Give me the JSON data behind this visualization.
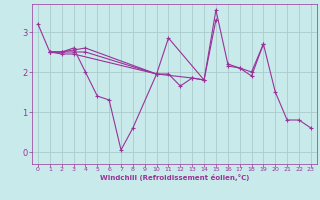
{
  "background_color": "#c8eaea",
  "grid_color": "#aacccc",
  "line_color": "#993399",
  "marker_color": "#993399",
  "xlabel": "Windchill (Refroidissement éolien,°C)",
  "xlabel_color": "#993399",
  "tick_color": "#993399",
  "xlim": [
    -0.5,
    23.5
  ],
  "ylim": [
    -0.3,
    3.7
  ],
  "yticks": [
    0,
    1,
    2,
    3
  ],
  "xticks": [
    0,
    1,
    2,
    3,
    4,
    5,
    6,
    7,
    8,
    9,
    10,
    11,
    12,
    13,
    14,
    15,
    16,
    17,
    18,
    19,
    20,
    21,
    22,
    23
  ],
  "series": [
    {
      "x": [
        0,
        1,
        2,
        3,
        4,
        5,
        6,
        7,
        8,
        10
      ],
      "y": [
        3.2,
        2.5,
        2.5,
        2.6,
        2.0,
        1.4,
        1.3,
        0.05,
        0.6,
        1.95
      ]
    },
    {
      "x": [
        1,
        2,
        3,
        4,
        10,
        11,
        12,
        13,
        14
      ],
      "y": [
        2.5,
        2.5,
        2.5,
        2.5,
        1.95,
        1.95,
        1.65,
        1.85,
        1.8
      ]
    },
    {
      "x": [
        1,
        2,
        3,
        4,
        10,
        11,
        14,
        15
      ],
      "y": [
        2.5,
        2.5,
        2.55,
        2.6,
        1.95,
        2.85,
        1.8,
        3.3
      ]
    },
    {
      "x": [
        1,
        2,
        3,
        10,
        13,
        14,
        15,
        16,
        17,
        18,
        19
      ],
      "y": [
        2.5,
        2.45,
        2.45,
        1.95,
        1.85,
        1.8,
        3.55,
        2.2,
        2.1,
        2.0,
        2.7
      ]
    },
    {
      "x": [
        16,
        17,
        18,
        19,
        20,
        21,
        22,
        23
      ],
      "y": [
        2.15,
        2.1,
        1.9,
        2.7,
        1.5,
        0.8,
        0.8,
        0.6
      ]
    }
  ]
}
